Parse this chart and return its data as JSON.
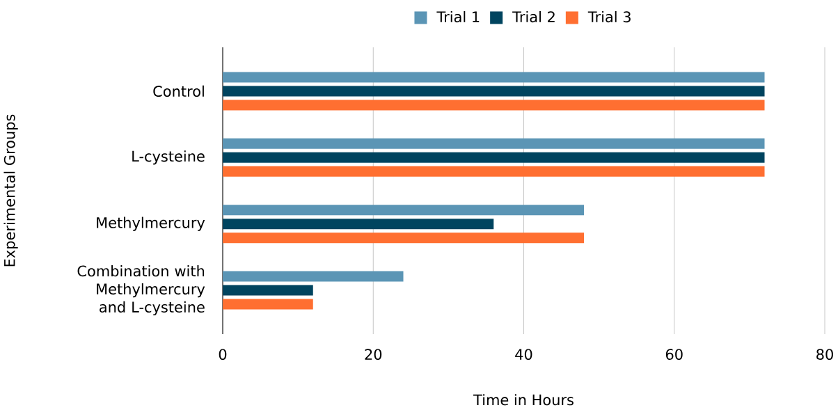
{
  "chart_data": {
    "type": "bar",
    "orientation": "horizontal",
    "categories": [
      "Control",
      "L-cysteine",
      "Methylmercury",
      "Combination with Methylmercury and L-cysteine"
    ],
    "series": [
      {
        "name": "Trial 1",
        "color": "#5b95b5",
        "values": [
          72,
          72,
          48,
          24
        ]
      },
      {
        "name": "Trial 2",
        "color": "#00445f",
        "values": [
          72,
          72,
          36,
          12
        ]
      },
      {
        "name": "Trial 3",
        "color": "#ff6f31",
        "values": [
          72,
          72,
          48,
          12
        ]
      }
    ],
    "xlabel": "Time in Hours",
    "ylabel": "Experimental Groups",
    "xlim": [
      0,
      80
    ],
    "xticks": [
      0,
      20,
      40,
      60,
      80
    ],
    "grid": "x",
    "legend": "top"
  }
}
